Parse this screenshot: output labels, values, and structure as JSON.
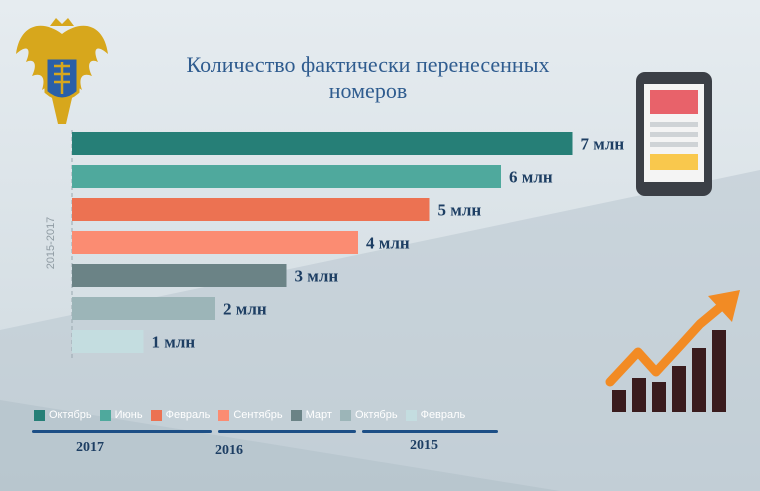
{
  "title_line1": "Количество фактически перенесенных",
  "title_line2": "номеров",
  "ylabel": "2015-2017",
  "colors": {
    "accent": "#2f5c8f",
    "year_line": "#1d4f86"
  },
  "icons": [
    "coat-of-arms-icon",
    "smartphone-icon",
    "growth-chart-icon"
  ],
  "chart_data": {
    "type": "bar",
    "orientation": "horizontal",
    "categories": [
      "Октябрь",
      "Июнь",
      "Февраль",
      "Сентябрь",
      "Март",
      "Октябрь",
      "Февраль"
    ],
    "values": [
      7,
      6,
      5,
      4,
      3,
      2,
      1
    ],
    "labels": [
      "7 млн",
      "6 млн",
      "5 млн",
      "4 млн",
      "3 млн",
      "2 млн",
      "1 млн"
    ],
    "colors": [
      "#267f77",
      "#4fa99d",
      "#ec7252",
      "#fb8c72",
      "#6b8386",
      "#9cb5b8",
      "#c4dde0"
    ],
    "ylabel": "2015-2017",
    "legend_position": "bottom",
    "years": [
      {
        "label": "2017"
      },
      {
        "label": "2016"
      },
      {
        "label": "2015"
      }
    ]
  }
}
